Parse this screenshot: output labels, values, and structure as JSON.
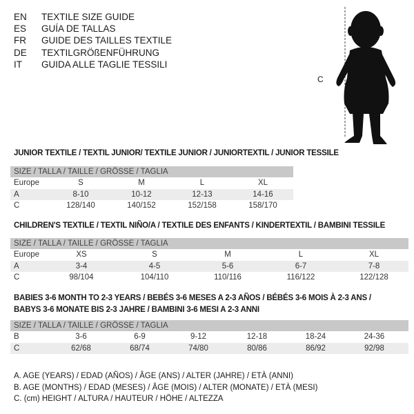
{
  "header": [
    {
      "code": "EN",
      "text": "TEXTILE SIZE GUIDE"
    },
    {
      "code": "ES",
      "text": "GUÍA DE TALLAS"
    },
    {
      "code": "FR",
      "text": "GUIDE DES TAILLES TEXTILE"
    },
    {
      "code": "DE",
      "text": "TEXTILGRÖßENFÜHRUNG"
    },
    {
      "code": "IT",
      "text": "GUIDA ALLE TAGLIE TESSILI"
    }
  ],
  "figure": {
    "label": "C",
    "icon": "child-silhouette"
  },
  "junior": {
    "title": "JUNIOR TEXTILE / TEXTIL JUNIOR/ TEXTILE JUNIOR / JUNIORTEXTIL / JUNIOR TESSILE",
    "band": "SIZE / TALLA / TAILLE / GRÖSSE / TAGLIA",
    "rows": [
      [
        "Europe",
        "S",
        "M",
        "L",
        "XL"
      ],
      [
        "A",
        "8-10",
        "10-12",
        "12-13",
        "14-16"
      ],
      [
        "C",
        "128/140",
        "140/152",
        "152/158",
        "158/170"
      ]
    ]
  },
  "children": {
    "title": "CHILDREN'S TEXTILE / TEXTIL NIÑO/A / TEXTILE DES ENFANTS / KINDERTEXTIL / BAMBINI TESSILE",
    "band": "SIZE / TALLA / TAILLE / GRÖSSE / TAGLIA",
    "rows": [
      [
        "Europe",
        "XS",
        "S",
        "M",
        "L",
        "XL"
      ],
      [
        "A",
        "3-4",
        "4-5",
        "5-6",
        "6-7",
        "7-8"
      ],
      [
        "C",
        "98/104",
        "104/110",
        "110/116",
        "116/122",
        "122/128"
      ]
    ]
  },
  "babies": {
    "title1": "BABIES 3-6 MONTH TO 2-3 YEARS / BEBÉS 3-6 MESES A 2-3 AÑOS / BÉBÉS 3-6 MOIS À 2-3 ANS /",
    "title2": "BABYS 3-6 MONATE BIS 2-3 JAHRE / BAMBINI 3-6 MESI A 2-3 ANNI",
    "band": "SIZE / TALLA / TAILLE / GRÖSSE / TAGLIA",
    "rows": [
      [
        "B",
        "3-6",
        "6-9",
        "9-12",
        "12-18",
        "18-24",
        "24-36"
      ],
      [
        "C",
        "62/68",
        "68/74",
        "74/80",
        "80/86",
        "86/92",
        "92/98"
      ]
    ]
  },
  "legend": [
    "A. AGE (YEARS) / EDAD (AÑOS) / ÂGE (ANS) / ALTER (JAHRE) / ETÀ (ANNI)",
    "B. AGE (MONTHS) / EDAD (MESES) / ÂGE (MOIS) / ALTER (MONATE) / ETÀ (MESI)",
    "C. (cm) HEIGHT / ALTURA / HAUTEUR / HÖHE / ALTEZZA"
  ]
}
